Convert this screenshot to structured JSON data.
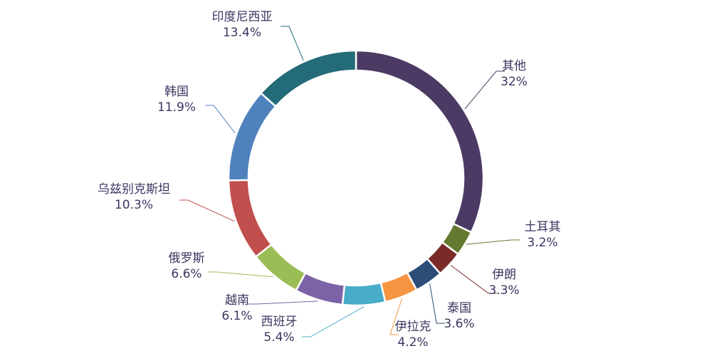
{
  "chart_data": {
    "type": "pie",
    "title": "",
    "donut": true,
    "slices": [
      {
        "name": "其他",
        "value": 32,
        "label": "32%",
        "color": "#4b3a63"
      },
      {
        "name": "土耳其",
        "value": 3.2,
        "label": "3.2%",
        "color": "#64782f"
      },
      {
        "name": "伊朗",
        "value": 3.3,
        "label": "3.3%",
        "color": "#7a2b28"
      },
      {
        "name": "泰国",
        "value": 3.6,
        "label": "3.6%",
        "color": "#2c4d78"
      },
      {
        "name": "伊拉克",
        "value": 4.2,
        "label": "4.2%",
        "color": "#f59542"
      },
      {
        "name": "西班牙",
        "value": 5.4,
        "label": "5.4%",
        "color": "#48adc8"
      },
      {
        "name": "越南",
        "value": 6.1,
        "label": "6.1%",
        "color": "#7c63a6"
      },
      {
        "name": "俄罗斯",
        "value": 6.6,
        "label": "6.6%",
        "color": "#9bbd55"
      },
      {
        "name": "乌兹别克斯坦",
        "value": 10.3,
        "label": "10.3%",
        "color": "#c04f4d"
      },
      {
        "name": "韩国",
        "value": 11.9,
        "label": "11.9%",
        "color": "#4f81bd"
      },
      {
        "name": "印度尼西亚",
        "value": 13.4,
        "label": "13.4%",
        "color": "#236b78"
      }
    ]
  }
}
